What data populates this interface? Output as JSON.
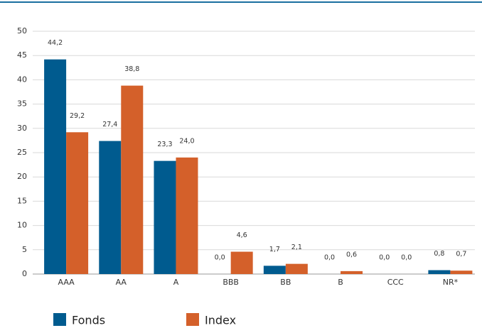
{
  "chart_data": {
    "type": "bar",
    "categories": [
      "AAA",
      "AA",
      "A",
      "BBB",
      "BB",
      "B",
      "CCC",
      "NR*"
    ],
    "series": [
      {
        "name": "Fonds",
        "color": "#005b8f",
        "values": [
          44.2,
          27.4,
          23.3,
          0.0,
          1.7,
          0.0,
          0.0,
          0.8
        ],
        "value_labels": [
          "44,2",
          "27,4",
          "23,3",
          "0,0",
          "1,7",
          "0,0",
          "0,0",
          "0,8"
        ]
      },
      {
        "name": "Index",
        "color": "#d4602a",
        "values": [
          29.2,
          38.8,
          24.0,
          4.6,
          2.1,
          0.6,
          0.0,
          0.7
        ],
        "value_labels": [
          "29,2",
          "38,8",
          "24,0",
          "4,6",
          "2,1",
          "0,6",
          "0,0",
          "0,7"
        ]
      }
    ],
    "ylim": [
      0,
      50
    ],
    "yticks": [
      0,
      5,
      10,
      15,
      20,
      25,
      30,
      35,
      40,
      45,
      50
    ],
    "grid": true
  }
}
